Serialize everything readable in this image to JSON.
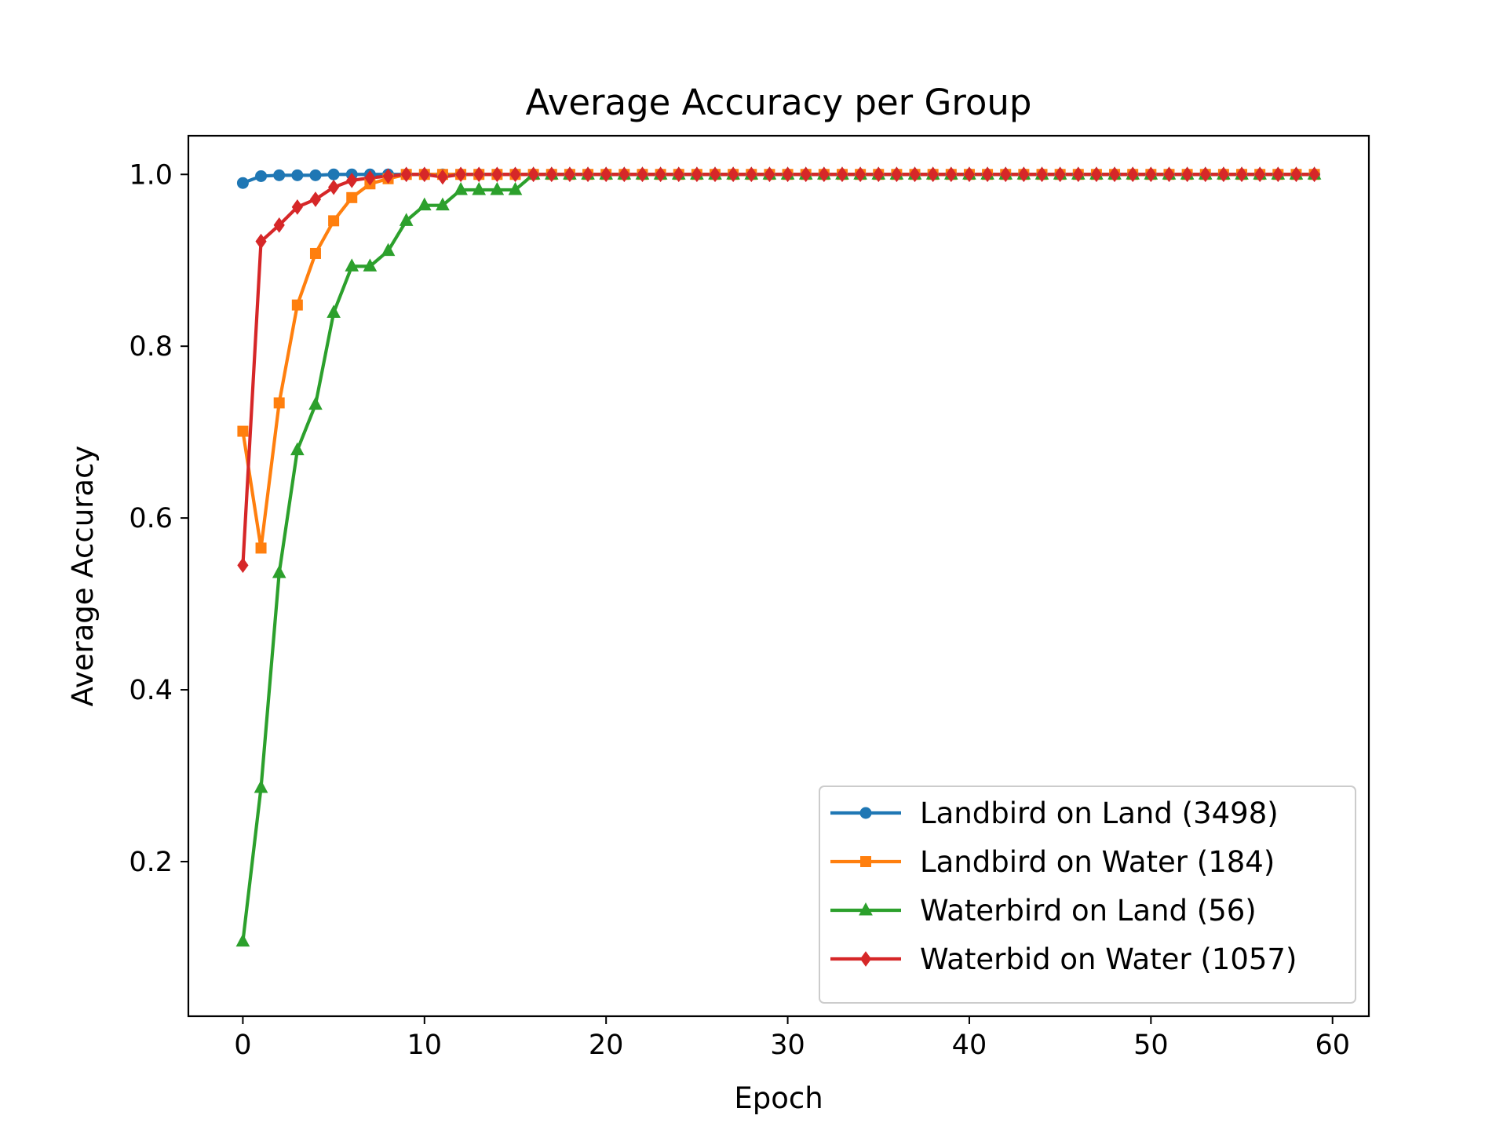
{
  "chart_data": {
    "type": "line",
    "title": "Average Accuracy per Group",
    "xlabel": "Epoch",
    "ylabel": "Average Accuracy",
    "xlim": [
      -3,
      62
    ],
    "ylim": [
      0.02,
      1.045
    ],
    "xticks": [
      0,
      10,
      20,
      30,
      40,
      50,
      60
    ],
    "xtick_labels": [
      "0",
      "10",
      "20",
      "30",
      "40",
      "50",
      "60"
    ],
    "yticks": [
      0.2,
      0.4,
      0.6,
      0.8,
      1.0
    ],
    "ytick_labels": [
      "0.2",
      "0.4",
      "0.6",
      "0.8",
      "1.0"
    ],
    "grid": false,
    "legend_position": "lower-right",
    "x": [
      0,
      1,
      2,
      3,
      4,
      5,
      6,
      7,
      8,
      9,
      10,
      11,
      12,
      13,
      14,
      15,
      16,
      17,
      18,
      19,
      20,
      21,
      22,
      23,
      24,
      25,
      26,
      27,
      28,
      29,
      30,
      31,
      32,
      33,
      34,
      35,
      36,
      37,
      38,
      39,
      40,
      41,
      42,
      43,
      44,
      45,
      46,
      47,
      48,
      49,
      50,
      51,
      52,
      53,
      54,
      55,
      56,
      57,
      58,
      59
    ],
    "series": [
      {
        "name": "Landbird on Land (3498)",
        "color": "#1f77b4",
        "marker": "circle",
        "values": [
          0.99,
          0.998,
          0.999,
          0.999,
          0.999,
          1.0,
          1.0,
          1.0,
          1.0,
          1.0,
          1.0,
          1.0,
          1.0,
          1.0,
          1.0,
          1.0,
          1.0,
          1.0,
          1.0,
          1.0,
          1.0,
          1.0,
          1.0,
          1.0,
          1.0,
          1.0,
          1.0,
          1.0,
          1.0,
          1.0,
          1.0,
          1.0,
          1.0,
          1.0,
          1.0,
          1.0,
          1.0,
          1.0,
          1.0,
          1.0,
          1.0,
          1.0,
          1.0,
          1.0,
          1.0,
          1.0,
          1.0,
          1.0,
          1.0,
          1.0,
          1.0,
          1.0,
          1.0,
          1.0,
          1.0,
          1.0,
          1.0,
          1.0,
          1.0,
          1.0
        ]
      },
      {
        "name": "Landbird on Water (184)",
        "color": "#ff7f0e",
        "marker": "square",
        "values": [
          0.701,
          0.565,
          0.734,
          0.848,
          0.908,
          0.946,
          0.973,
          0.989,
          0.995,
          1.0,
          1.0,
          1.0,
          1.0,
          1.0,
          1.0,
          1.0,
          1.0,
          1.0,
          1.0,
          1.0,
          1.0,
          1.0,
          1.0,
          1.0,
          1.0,
          1.0,
          1.0,
          1.0,
          1.0,
          1.0,
          1.0,
          1.0,
          1.0,
          1.0,
          1.0,
          1.0,
          1.0,
          1.0,
          1.0,
          1.0,
          1.0,
          1.0,
          1.0,
          1.0,
          1.0,
          1.0,
          1.0,
          1.0,
          1.0,
          1.0,
          1.0,
          1.0,
          1.0,
          1.0,
          1.0,
          1.0,
          1.0,
          1.0,
          1.0,
          1.0
        ]
      },
      {
        "name": "Waterbird on Land (56)",
        "color": "#2ca02c",
        "marker": "triangle",
        "values": [
          0.107,
          0.286,
          0.536,
          0.679,
          0.732,
          0.839,
          0.893,
          0.893,
          0.911,
          0.946,
          0.964,
          0.964,
          0.982,
          0.982,
          0.982,
          0.982,
          1.0,
          1.0,
          1.0,
          1.0,
          1.0,
          1.0,
          1.0,
          1.0,
          1.0,
          1.0,
          1.0,
          1.0,
          1.0,
          1.0,
          1.0,
          1.0,
          1.0,
          1.0,
          1.0,
          1.0,
          1.0,
          1.0,
          1.0,
          1.0,
          1.0,
          1.0,
          1.0,
          1.0,
          1.0,
          1.0,
          1.0,
          1.0,
          1.0,
          1.0,
          1.0,
          1.0,
          1.0,
          1.0,
          1.0,
          1.0,
          1.0,
          1.0,
          1.0,
          1.0
        ]
      },
      {
        "name": "Waterbid on Water (1057)",
        "color": "#d62728",
        "marker": "diamond",
        "values": [
          0.545,
          0.922,
          0.941,
          0.962,
          0.971,
          0.985,
          0.993,
          0.996,
          0.998,
          1.0,
          1.0,
          0.997,
          1.0,
          1.0,
          1.0,
          1.0,
          1.0,
          1.0,
          1.0,
          1.0,
          1.0,
          1.0,
          1.0,
          1.0,
          1.0,
          1.0,
          1.0,
          1.0,
          1.0,
          1.0,
          1.0,
          1.0,
          1.0,
          1.0,
          1.0,
          1.0,
          1.0,
          1.0,
          1.0,
          1.0,
          1.0,
          1.0,
          1.0,
          1.0,
          1.0,
          1.0,
          1.0,
          1.0,
          1.0,
          1.0,
          1.0,
          1.0,
          1.0,
          1.0,
          1.0,
          1.0,
          1.0,
          1.0,
          1.0,
          1.0
        ]
      }
    ]
  }
}
